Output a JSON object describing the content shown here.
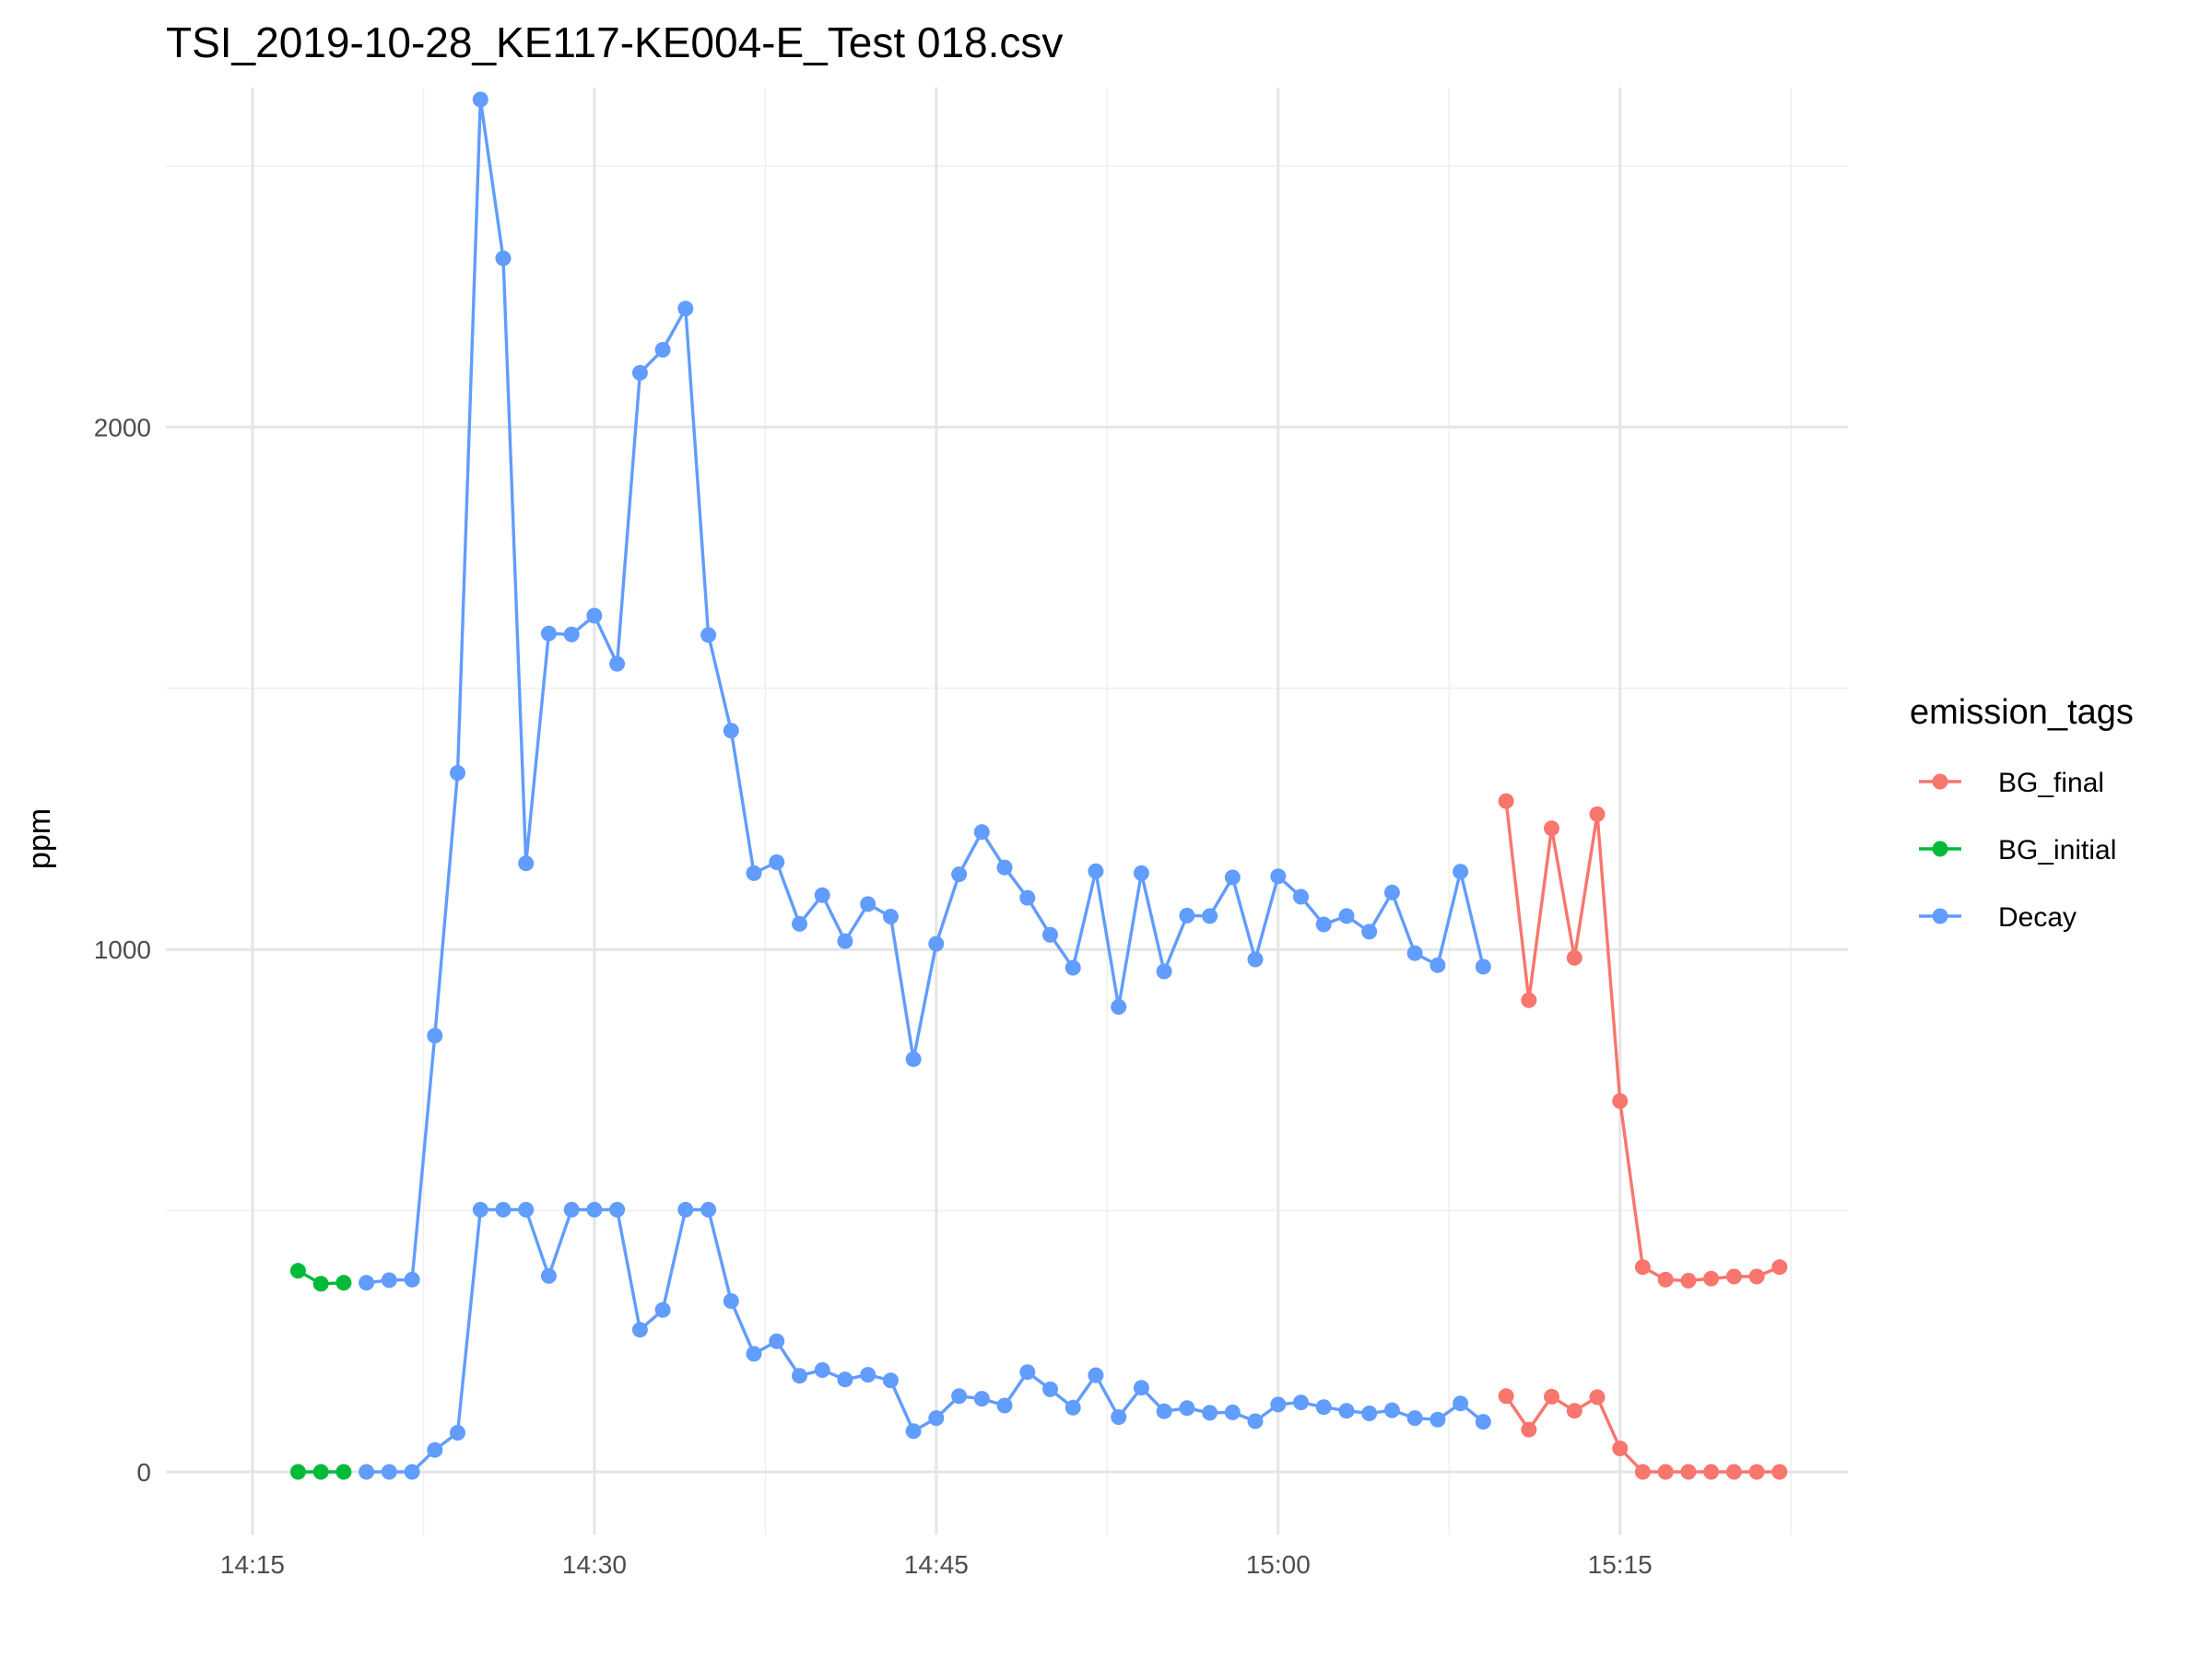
{
  "chart_data": {
    "type": "line",
    "title": "TSI_2019-10-28_KE117-KE004-E_Test 018.csv",
    "xlabel": "",
    "ylabel": "ppm",
    "x_ticks": [
      "14:15",
      "14:30",
      "14:45",
      "15:00",
      "15:15"
    ],
    "y_ticks": [
      0,
      1000,
      2000
    ],
    "xlim": [
      "14:14",
      "14:24"
    ],
    "ylim": [
      -120,
      2650
    ],
    "grid": true,
    "legend": {
      "title": "emission_tags",
      "position": "right",
      "entries": [
        {
          "name": "BG_final",
          "color": "#F8766D"
        },
        {
          "name": "BG_initial",
          "color": "#00BA38"
        },
        {
          "name": "Decay",
          "color": "#619CFF"
        }
      ]
    },
    "series": [
      {
        "name": "BG_initial",
        "color": "#00BA38",
        "line": "upper",
        "x": [
          "14:17",
          "14:18",
          "14:19"
        ],
        "values": [
          385,
          360,
          362
        ]
      },
      {
        "name": "BG_initial",
        "color": "#00BA38",
        "line": "lower",
        "x": [
          "14:17",
          "14:18",
          "14:19"
        ],
        "values": [
          0,
          0,
          0
        ]
      },
      {
        "name": "Decay",
        "color": "#619CFF",
        "line": "upper",
        "x": [
          "14:20",
          "14:21",
          "14:22",
          "14:23",
          "14:24",
          "14:25",
          "14:26",
          "14:27",
          "14:28",
          "14:29",
          "14:30",
          "14:31",
          "14:32",
          "14:33",
          "14:34",
          "14:35",
          "14:36",
          "14:37",
          "14:38",
          "14:39",
          "14:40",
          "14:41",
          "14:42",
          "14:43",
          "14:44",
          "14:45",
          "14:46",
          "14:47",
          "14:48",
          "14:49",
          "14:50",
          "14:51",
          "14:52",
          "14:53",
          "14:54",
          "14:55",
          "14:56",
          "14:57",
          "14:58",
          "14:59",
          "15:00",
          "15:01",
          "15:02",
          "15:03",
          "15:04",
          "15:05",
          "15:06",
          "15:07",
          "15:08",
          "15:09"
        ],
        "values": [
          362,
          367,
          368,
          835,
          1338,
          2627,
          2323,
          1165,
          1605,
          1603,
          1639,
          1547,
          2104,
          2148,
          2227,
          1602,
          1419,
          1146,
          1167,
          1049,
          1104,
          1016,
          1087,
          1063,
          790,
          1011,
          1144,
          1225,
          1157,
          1099,
          1028,
          965,
          1150,
          890,
          1146,
          958,
          1065,
          1064,
          1138,
          981,
          1140,
          1101,
          1048,
          1064,
          1034,
          1109,
          993,
          970,
          1149,
          967
        ]
      },
      {
        "name": "Decay",
        "color": "#619CFF",
        "line": "lower",
        "x": [
          "14:20",
          "14:21",
          "14:22",
          "14:23",
          "14:24",
          "14:25",
          "14:26",
          "14:27",
          "14:28",
          "14:29",
          "14:30",
          "14:31",
          "14:32",
          "14:33",
          "14:34",
          "14:35",
          "14:36",
          "14:37",
          "14:38",
          "14:39",
          "14:40",
          "14:41",
          "14:42",
          "14:43",
          "14:44",
          "14:45",
          "14:46",
          "14:47",
          "14:48",
          "14:49",
          "14:50",
          "14:51",
          "14:52",
          "14:53",
          "14:54",
          "14:55",
          "14:56",
          "14:57",
          "14:58",
          "14:59",
          "15:00",
          "15:01",
          "15:02",
          "15:03",
          "15:04",
          "15:05",
          "15:06",
          "15:07",
          "15:08",
          "15:09"
        ],
        "values": [
          0,
          0,
          0,
          42,
          75,
          502,
          502,
          502,
          375,
          502,
          502,
          502,
          272,
          310,
          502,
          502,
          327,
          226,
          250,
          184,
          195,
          177,
          186,
          175,
          78,
          103,
          145,
          140,
          127,
          191,
          158,
          123,
          185,
          105,
          161,
          116,
          122,
          113,
          114,
          97,
          129,
          133,
          124,
          117,
          112,
          118,
          103,
          100,
          131,
          96
        ]
      },
      {
        "name": "BG_final",
        "color": "#F8766D",
        "line": "upper",
        "x": [
          "15:10",
          "15:11",
          "15:12",
          "15:13",
          "15:14",
          "15:15",
          "15:16",
          "15:17",
          "15:18",
          "15:19",
          "15:20",
          "15:21",
          "15:22"
        ],
        "values": [
          1284,
          903,
          1232,
          984,
          1259,
          710,
          392,
          368,
          366,
          370,
          374,
          374,
          392
        ]
      },
      {
        "name": "BG_final",
        "color": "#F8766D",
        "line": "lower",
        "x": [
          "15:10",
          "15:11",
          "15:12",
          "15:13",
          "15:14",
          "15:15",
          "15:16",
          "15:17",
          "15:18",
          "15:19",
          "15:20",
          "15:21",
          "15:22"
        ],
        "values": [
          145,
          81,
          144,
          117,
          143,
          45,
          0,
          0,
          0,
          0,
          0,
          0,
          0
        ]
      }
    ]
  }
}
